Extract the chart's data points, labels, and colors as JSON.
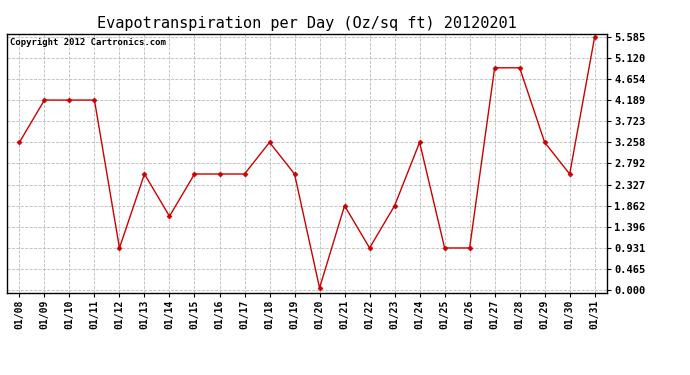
{
  "title": "Evapotranspiration per Day (Oz/sq ft) 20120201",
  "copyright": "Copyright 2012 Cartronics.com",
  "x_labels": [
    "01/08",
    "01/09",
    "01/10",
    "01/11",
    "01/12",
    "01/13",
    "01/14",
    "01/15",
    "01/16",
    "01/17",
    "01/18",
    "01/19",
    "01/20",
    "01/21",
    "01/22",
    "01/23",
    "01/24",
    "01/25",
    "01/26",
    "01/27",
    "01/28",
    "01/29",
    "01/30",
    "01/31"
  ],
  "y_values": [
    3.258,
    4.189,
    4.189,
    4.189,
    0.931,
    2.56,
    1.63,
    2.56,
    2.56,
    2.56,
    3.258,
    2.56,
    0.05,
    1.862,
    0.931,
    1.862,
    3.258,
    0.931,
    0.931,
    4.9,
    4.9,
    3.258,
    2.56,
    5.585
  ],
  "line_color": "#cc0000",
  "marker": "D",
  "marker_size": 2.5,
  "bg_color": "#ffffff",
  "grid_color": "#bbbbbb",
  "y_ticks": [
    0.0,
    0.465,
    0.931,
    1.396,
    1.862,
    2.327,
    2.792,
    3.258,
    3.723,
    4.189,
    4.654,
    5.12,
    5.585
  ],
  "ylim_min": -0.05,
  "ylim_max": 5.65,
  "title_fontsize": 11,
  "copyright_fontsize": 6.5,
  "tick_fontsize": 7,
  "ytick_fontsize": 7.5
}
